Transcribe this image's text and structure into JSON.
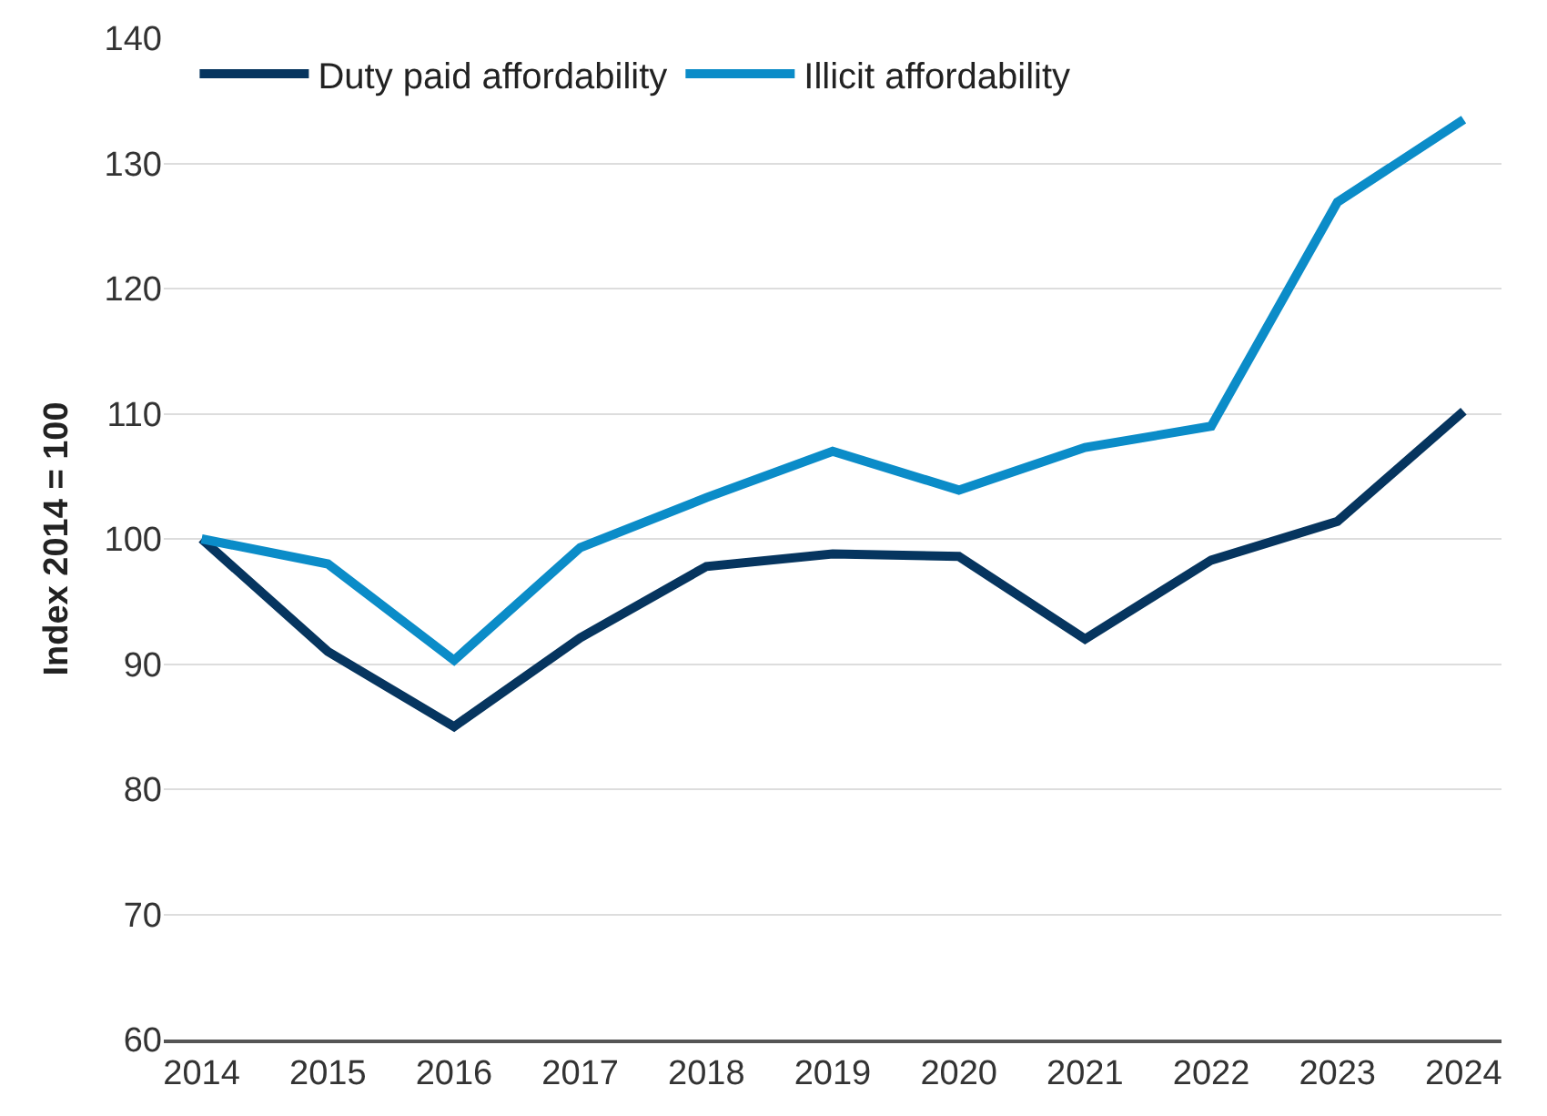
{
  "chart_data": {
    "type": "line",
    "ylabel": "Index 2014 = 100",
    "categories": [
      "2014",
      "2015",
      "2016",
      "2017",
      "2018",
      "2019",
      "2020",
      "2021",
      "2022",
      "2023",
      "2024"
    ],
    "series": [
      {
        "name": "Duty paid affordability",
        "color": "#06355f",
        "values": [
          100,
          91.0,
          85.0,
          92.1,
          97.8,
          98.8,
          98.6,
          92.0,
          98.3,
          101.4,
          110.2
        ]
      },
      {
        "name": "Illicit affordability",
        "color": "#0b8cc8",
        "values": [
          100,
          98.0,
          90.3,
          99.3,
          103.3,
          107.0,
          103.9,
          107.3,
          109.0,
          126.9,
          133.5
        ]
      }
    ],
    "ylim": [
      60,
      140
    ],
    "yticks": [
      60,
      70,
      80,
      90,
      100,
      110,
      120,
      130,
      140
    ],
    "grid": "y",
    "legend": "top left",
    "marker": "none",
    "line_style": "solid"
  }
}
